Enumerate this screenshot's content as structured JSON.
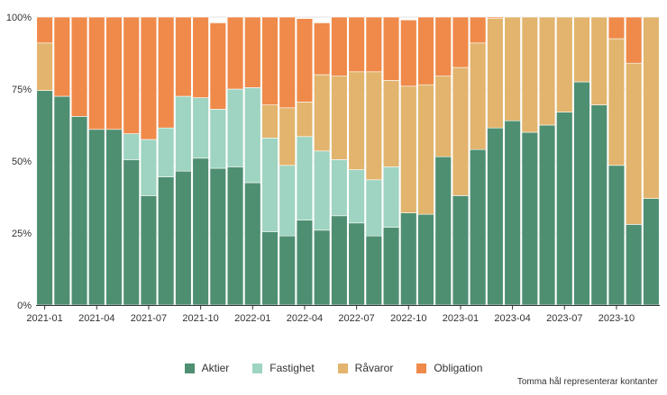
{
  "chart_data": {
    "type": "bar",
    "stacked": true,
    "normalized": true,
    "categories": [
      "2021-01",
      "2021-02",
      "2021-03",
      "2021-04",
      "2021-05",
      "2021-06",
      "2021-07",
      "2021-08",
      "2021-09",
      "2021-10",
      "2021-11",
      "2021-12",
      "2022-01",
      "2022-02",
      "2022-03",
      "2022-04",
      "2022-05",
      "2022-06",
      "2022-07",
      "2022-08",
      "2022-09",
      "2022-10",
      "2022-11",
      "2022-12",
      "2023-01",
      "2023-02",
      "2023-03",
      "2023-04",
      "2023-05",
      "2023-06",
      "2023-07",
      "2023-08",
      "2023-09",
      "2023-10",
      "2023-11",
      "2023-12"
    ],
    "x_tick_labels": [
      "2021-01",
      "2021-04",
      "2021-07",
      "2021-10",
      "2022-01",
      "2022-04",
      "2022-07",
      "2022-10",
      "2023-01",
      "2023-04",
      "2023-07",
      "2023-10"
    ],
    "x_tick_indices": [
      0,
      3,
      6,
      9,
      12,
      15,
      18,
      21,
      24,
      27,
      30,
      33
    ],
    "y_tick_labels": [
      "0%",
      "25%",
      "50%",
      "75%",
      "100%"
    ],
    "y_tick_values": [
      0,
      25,
      50,
      75,
      100
    ],
    "ylim": [
      0,
      100
    ],
    "grid": true,
    "legend_position": "bottom",
    "series": [
      {
        "name": "Aktier",
        "color": "#4e8f72",
        "values": [
          74.5,
          72.5,
          65.5,
          61,
          61,
          50.5,
          38,
          44.5,
          46.5,
          51,
          47.5,
          48,
          42.5,
          25.5,
          24,
          29.5,
          26,
          31,
          28.5,
          24,
          27,
          32,
          31.5,
          51.5,
          38,
          54,
          61.5,
          64,
          60,
          62.5,
          67,
          77.5,
          69.5,
          48.5,
          28,
          37
        ]
      },
      {
        "name": "Fastighet",
        "color": "#9ed4c1",
        "values": [
          0,
          0,
          0,
          0,
          0,
          9,
          19.5,
          17,
          26,
          21,
          20.5,
          27,
          33,
          32.5,
          24.5,
          29,
          27.5,
          19.5,
          18.5,
          19.5,
          21,
          0,
          0,
          0,
          0,
          0,
          0,
          0,
          0,
          0,
          0,
          0,
          0,
          0,
          0,
          0
        ]
      },
      {
        "name": "Råvaror",
        "color": "#e2b46d",
        "values": [
          16.5,
          0,
          0,
          0,
          0,
          0,
          0,
          0,
          0,
          0,
          0,
          0,
          0,
          11.5,
          20,
          12,
          26.5,
          29,
          34,
          37.5,
          30,
          44,
          45,
          28,
          44.5,
          37,
          38,
          36,
          40,
          37.5,
          33,
          22.5,
          30.5,
          44,
          56,
          63
        ]
      },
      {
        "name": "Obligation",
        "color": "#ef8a4a",
        "values": [
          9,
          27.5,
          34.5,
          39,
          39,
          40.5,
          42.5,
          38.5,
          27.5,
          28,
          30,
          25,
          24.5,
          30.5,
          31.5,
          29,
          18,
          20.5,
          19,
          19,
          22,
          23,
          23.5,
          20.5,
          17.5,
          9,
          0.5,
          0,
          0,
          0,
          0,
          0,
          0,
          7.5,
          16,
          0
        ]
      }
    ]
  },
  "footnote": "Tomma hål representerar kontanter"
}
